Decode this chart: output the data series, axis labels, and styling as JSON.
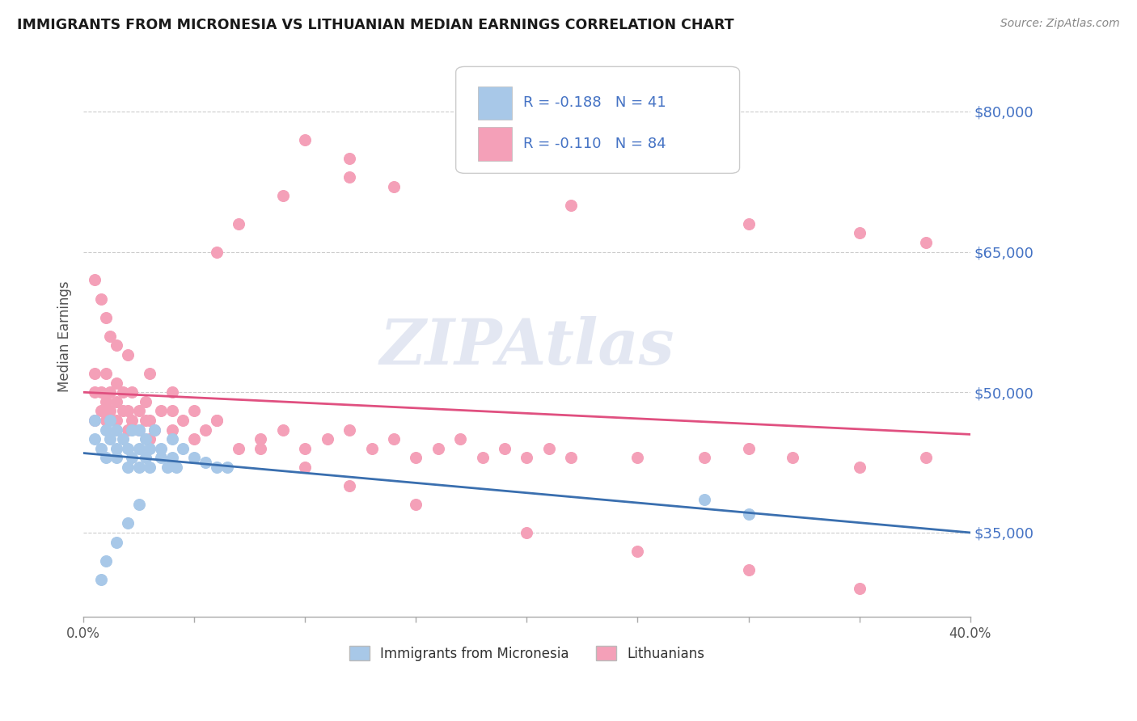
{
  "title": "IMMIGRANTS FROM MICRONESIA VS LITHUANIAN MEDIAN EARNINGS CORRELATION CHART",
  "source": "Source: ZipAtlas.com",
  "ylabel": "Median Earnings",
  "yticks": [
    35000,
    50000,
    65000,
    80000
  ],
  "ytick_labels": [
    "$35,000",
    "$50,000",
    "$65,000",
    "$80,000"
  ],
  "xmin": 0.0,
  "xmax": 0.4,
  "ymin": 26000,
  "ymax": 86000,
  "blue_R": -0.188,
  "blue_N": 41,
  "pink_R": -0.11,
  "pink_N": 84,
  "blue_color": "#a8c8e8",
  "pink_color": "#f4a0b8",
  "blue_line_color": "#3a6faf",
  "pink_line_color": "#e05080",
  "legend_label_blue": "Immigrants from Micronesia",
  "legend_label_pink": "Lithuanians",
  "watermark": "ZIPAtlas",
  "title_color": "#1a1a1a",
  "axis_label_color": "#4472C4",
  "blue_scatter_x": [
    0.005,
    0.005,
    0.008,
    0.01,
    0.01,
    0.012,
    0.012,
    0.015,
    0.015,
    0.015,
    0.018,
    0.02,
    0.02,
    0.022,
    0.022,
    0.025,
    0.025,
    0.025,
    0.028,
    0.028,
    0.03,
    0.03,
    0.032,
    0.035,
    0.035,
    0.038,
    0.04,
    0.04,
    0.042,
    0.045,
    0.05,
    0.055,
    0.06,
    0.065,
    0.008,
    0.01,
    0.015,
    0.02,
    0.025,
    0.28,
    0.3
  ],
  "blue_scatter_y": [
    45000,
    47000,
    44000,
    46000,
    43000,
    47000,
    45000,
    44000,
    46000,
    43000,
    45000,
    42000,
    44000,
    46000,
    43000,
    42000,
    44000,
    46000,
    43000,
    45000,
    42000,
    44000,
    46000,
    43000,
    44000,
    42000,
    43000,
    45000,
    42000,
    44000,
    43000,
    42500,
    42000,
    42000,
    30000,
    32000,
    34000,
    36000,
    38000,
    38500,
    37000
  ],
  "pink_scatter_x": [
    0.005,
    0.005,
    0.005,
    0.008,
    0.008,
    0.01,
    0.01,
    0.01,
    0.012,
    0.012,
    0.015,
    0.015,
    0.015,
    0.018,
    0.018,
    0.02,
    0.02,
    0.022,
    0.022,
    0.025,
    0.025,
    0.028,
    0.028,
    0.03,
    0.03,
    0.032,
    0.035,
    0.04,
    0.04,
    0.045,
    0.05,
    0.055,
    0.06,
    0.07,
    0.08,
    0.09,
    0.1,
    0.11,
    0.12,
    0.13,
    0.14,
    0.15,
    0.16,
    0.17,
    0.18,
    0.19,
    0.2,
    0.21,
    0.22,
    0.25,
    0.28,
    0.3,
    0.32,
    0.35,
    0.38,
    0.1,
    0.12,
    0.14,
    0.22,
    0.3,
    0.35,
    0.38,
    0.005,
    0.008,
    0.01,
    0.012,
    0.015,
    0.02,
    0.03,
    0.04,
    0.05,
    0.06,
    0.08,
    0.1,
    0.12,
    0.15,
    0.2,
    0.25,
    0.3,
    0.35,
    0.12,
    0.09,
    0.07,
    0.06
  ],
  "pink_scatter_y": [
    50000,
    47000,
    52000,
    48000,
    50000,
    47000,
    49000,
    52000,
    48000,
    50000,
    47000,
    49000,
    51000,
    48000,
    50000,
    46000,
    48000,
    47000,
    50000,
    46000,
    48000,
    47000,
    49000,
    45000,
    47000,
    46000,
    48000,
    46000,
    48000,
    47000,
    45000,
    46000,
    47000,
    44000,
    45000,
    46000,
    44000,
    45000,
    46000,
    44000,
    45000,
    43000,
    44000,
    45000,
    43000,
    44000,
    43000,
    44000,
    43000,
    43000,
    43000,
    44000,
    43000,
    42000,
    43000,
    77000,
    75000,
    72000,
    70000,
    68000,
    67000,
    66000,
    62000,
    60000,
    58000,
    56000,
    55000,
    54000,
    52000,
    50000,
    48000,
    47000,
    44000,
    42000,
    40000,
    38000,
    35000,
    33000,
    31000,
    29000,
    73000,
    71000,
    68000,
    65000
  ]
}
